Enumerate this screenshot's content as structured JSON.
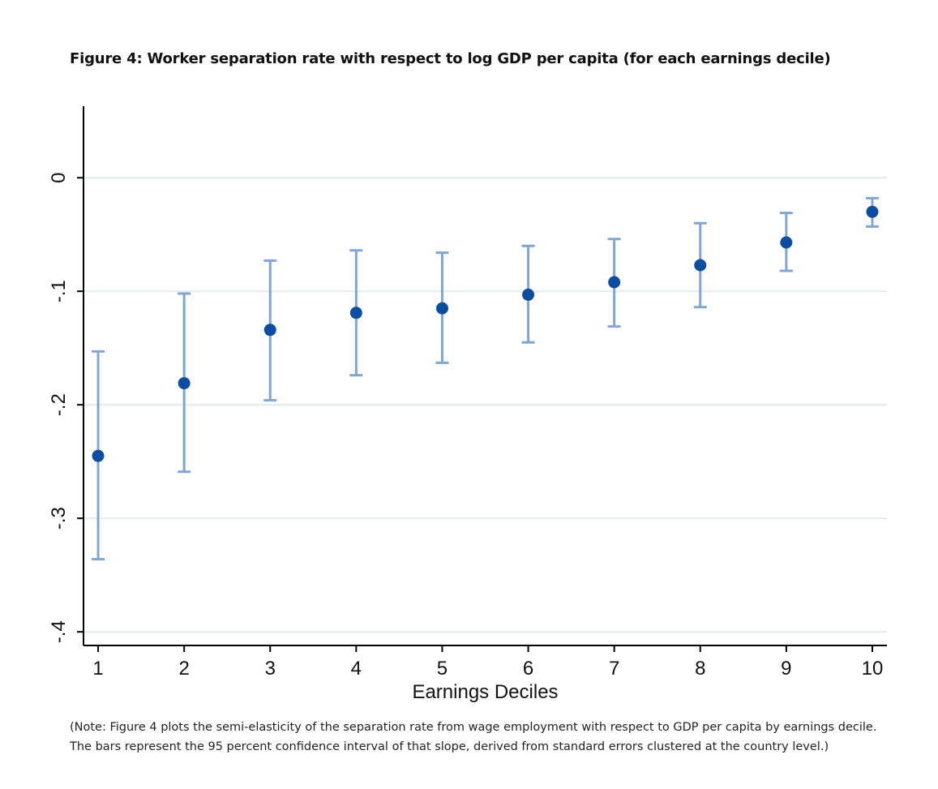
{
  "figure": {
    "title": "Figure 4: Worker separation rate with respect to log GDP per capita (for each earnings decile)",
    "note_line1": "(Note: Figure 4 plots the semi-elasticity of the separation rate from wage employment with respect to GDP per capita by earnings decile.",
    "note_line2": "The bars represent the 95 percent confidence interval of that slope, derived from standard errors clustered at the country level.)"
  },
  "chart_data": {
    "type": "scatter",
    "subtype": "point estimates with confidence interval bars",
    "xlabel": "Earnings Deciles",
    "ylabel": "",
    "x": [
      1,
      2,
      3,
      4,
      5,
      6,
      7,
      8,
      9,
      10
    ],
    "x_tick_labels": [
      "1",
      "2",
      "3",
      "4",
      "5",
      "6",
      "7",
      "8",
      "9",
      "10"
    ],
    "y": [
      -0.245,
      -0.181,
      -0.134,
      -0.119,
      -0.115,
      -0.103,
      -0.092,
      -0.077,
      -0.057,
      -0.03
    ],
    "ci_low": [
      -0.336,
      -0.259,
      -0.196,
      -0.174,
      -0.163,
      -0.145,
      -0.131,
      -0.114,
      -0.082,
      -0.043
    ],
    "ci_high": [
      -0.153,
      -0.102,
      -0.073,
      -0.064,
      -0.066,
      -0.06,
      -0.054,
      -0.04,
      -0.031,
      -0.018
    ],
    "y_ticks": [
      0,
      -0.1,
      -0.2,
      -0.3,
      -0.4
    ],
    "y_tick_labels": [
      "0",
      "-.1",
      "-.2",
      "-.3",
      "-.4"
    ],
    "ylim": [
      -0.412,
      0.063
    ],
    "xlim": [
      0.83,
      10.17
    ],
    "grid": true,
    "colors": {
      "point": "#0c4da2",
      "ci_bar": "#7fa6d6",
      "grid": "#e3ebed",
      "axis": "#000000"
    }
  }
}
